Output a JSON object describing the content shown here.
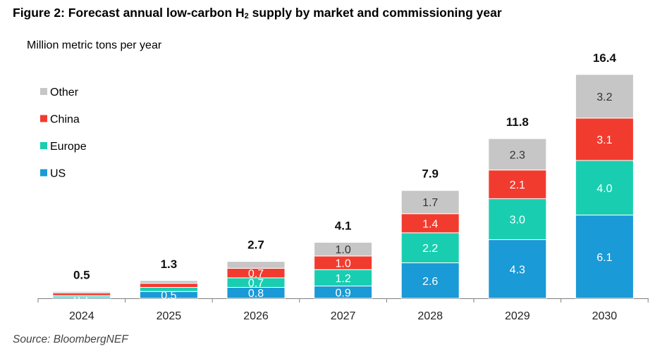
{
  "title": {
    "prefix": "Figure 2: Forecast annual low-carbon H",
    "subscript": "2",
    "suffix": " supply by market and commissioning year"
  },
  "unit_label": "Million metric tons per year",
  "source": "Source: BloombergNEF",
  "chart_data": {
    "type": "bar",
    "stacked": true,
    "categories": [
      "2024",
      "2025",
      "2026",
      "2027",
      "2028",
      "2029",
      "2030"
    ],
    "series": [
      {
        "name": "US",
        "color": "#1a9ad6",
        "values": [
          0.1,
          0.5,
          0.8,
          0.9,
          2.6,
          4.3,
          6.1
        ],
        "labels": [
          "0.1",
          "0.5",
          "0.8",
          "0.9",
          "2.6",
          "4.3",
          "6.1"
        ]
      },
      {
        "name": "Europe",
        "color": "#19ceb0",
        "values": [
          0.1,
          0.3,
          0.7,
          1.2,
          2.2,
          3.0,
          4.0
        ],
        "labels": [
          "",
          "",
          "0.7",
          "1.2",
          "2.2",
          "3.0",
          "4.0"
        ]
      },
      {
        "name": "China",
        "color": "#f23b2f",
        "values": [
          0.2,
          0.3,
          0.7,
          1.0,
          1.4,
          2.1,
          3.1
        ],
        "labels": [
          "",
          "",
          "0.7",
          "1.0",
          "1.4",
          "2.1",
          "3.1"
        ]
      },
      {
        "name": "Other",
        "color": "#c6c6c6",
        "values": [
          0.1,
          0.2,
          0.5,
          1.0,
          1.7,
          2.3,
          3.2
        ],
        "labels": [
          "",
          "",
          "",
          "1.0",
          "1.7",
          "2.3",
          "3.2"
        ]
      }
    ],
    "totals": [
      "0.5",
      "1.3",
      "2.7",
      "4.1",
      "7.9",
      "11.8",
      "16.4"
    ],
    "legend_order": [
      "Other",
      "China",
      "Europe",
      "US"
    ],
    "legend_position": "top-left",
    "ylim": [
      0,
      18.5
    ],
    "grid": false
  }
}
